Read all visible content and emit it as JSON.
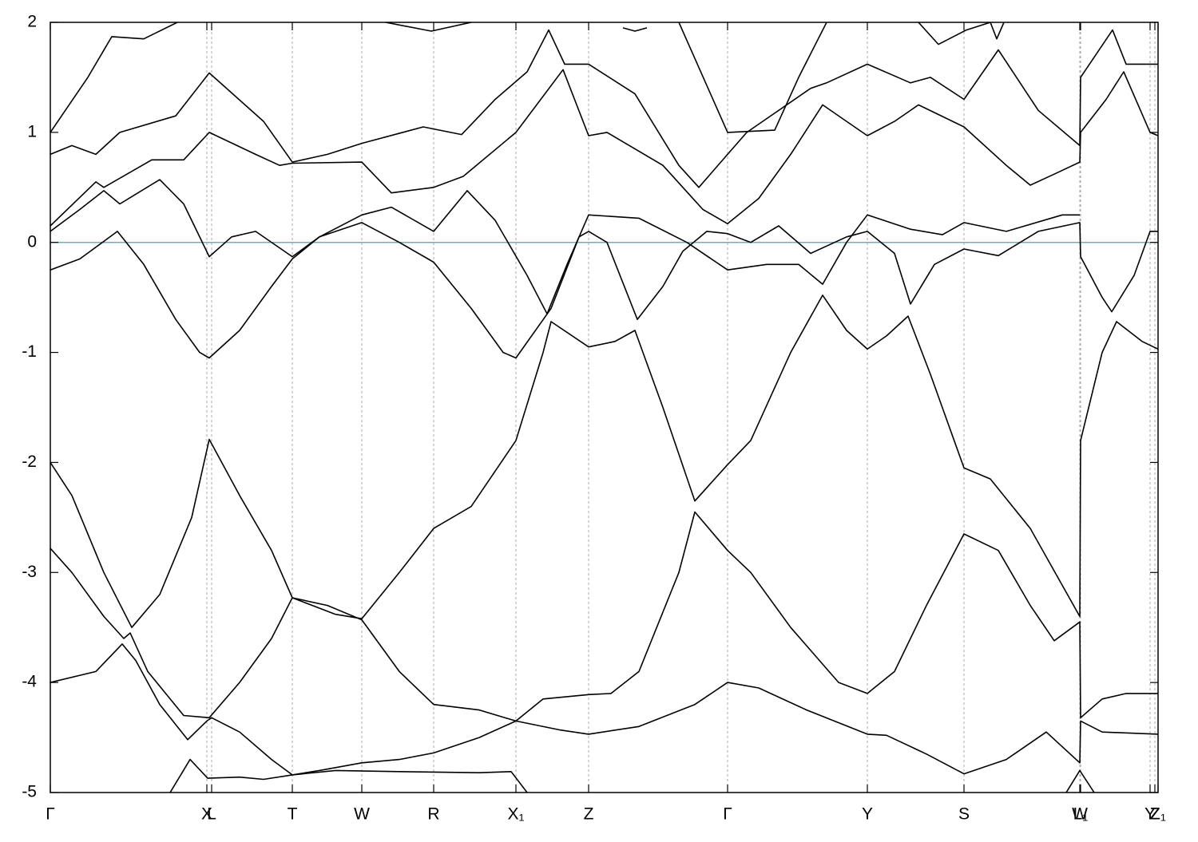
{
  "chart_data": {
    "type": "line",
    "xlim": [
      0,
      1387
    ],
    "ylim": [
      -5,
      2
    ],
    "xticks": [
      {
        "value": 0,
        "label": "Γ"
      },
      {
        "value": 196,
        "label": "X"
      },
      {
        "value": 202,
        "label": "L"
      },
      {
        "value": 303,
        "label": "T"
      },
      {
        "value": 390,
        "label": "W"
      },
      {
        "value": 480,
        "label": "R"
      },
      {
        "value": 583,
        "label": "X₁"
      },
      {
        "value": 674,
        "label": "Z"
      },
      {
        "value": 848,
        "label": "Γ"
      },
      {
        "value": 1023,
        "label": "Y"
      },
      {
        "value": 1144,
        "label": "S"
      },
      {
        "value": 1289,
        "label": "W"
      },
      {
        "value": 1290,
        "label": "L₁"
      },
      {
        "value": 1377,
        "label": "Y"
      },
      {
        "value": 1383,
        "label": "Z"
      },
      {
        "value": 1387,
        "label": "Z₁"
      }
    ],
    "yticks": [
      -5,
      -4,
      -3,
      -2,
      -1,
      0,
      1,
      2
    ],
    "grid": true,
    "reference_line": {
      "value": 0,
      "color": "#5fb4c8"
    },
    "series": [
      {
        "color": "#000000",
        "x": [
          150,
          175,
          197,
          237,
          267,
          303,
          357,
          437,
          537,
          577,
          597,
          1000,
          1272,
          1289,
          1307
        ],
        "values": [
          -5,
          -4.7,
          -4.87,
          -4.86,
          -4.88,
          -4.84,
          -4.8,
          -4.81,
          -4.82,
          -4.81,
          -5,
          null,
          -5,
          -4.8,
          -5
        ]
      },
      {
        "color": "#000000",
        "x": [
          0,
          57,
          90,
          107,
          137,
          172,
          196,
          202,
          237,
          277,
          303,
          337,
          390,
          437,
          480,
          537,
          583,
          617,
          674,
          702,
          737,
          787,
          807,
          848,
          877,
          927,
          987,
          1023,
          1057,
          1097,
          1144,
          1187,
          1227,
          1257,
          1289,
          1290,
          1317,
          1347,
          1387
        ],
        "values": [
          -4,
          -3.9,
          -3.65,
          -3.8,
          -4.2,
          -4.52,
          -4.35,
          -4.32,
          -4.45,
          -4.7,
          -4.84,
          -4.8,
          -4.73,
          -4.7,
          -4.64,
          -4.5,
          -4.35,
          -4.15,
          -4.11,
          -4.1,
          -3.9,
          -3.0,
          -2.45,
          -2.8,
          -3.0,
          -3.5,
          -4.0,
          -4.1,
          -3.9,
          -3.3,
          -2.65,
          -2.8,
          -3.3,
          -3.62,
          -3.45,
          -4.32,
          -4.15,
          -4.1,
          -4.1
        ]
      },
      {
        "color": "#000000",
        "x": [
          0,
          27,
          67,
          92,
          100,
          122,
          167,
          199,
          237,
          277,
          303,
          347,
          390,
          437,
          480,
          537,
          583,
          637,
          674,
          737,
          807,
          848,
          887,
          947,
          1023,
          1047,
          1097,
          1144,
          1197,
          1247,
          1289,
          1290,
          1317,
          1387
        ],
        "values": [
          -2.78,
          -3.0,
          -3.4,
          -3.6,
          -3.55,
          -3.9,
          -4.3,
          -4.32,
          -4.0,
          -3.6,
          -3.23,
          -3.3,
          -3.43,
          -3.9,
          -4.2,
          -4.25,
          -4.35,
          -4.43,
          -4.47,
          -4.4,
          -4.2,
          -4.0,
          -4.05,
          -4.25,
          -4.47,
          -4.48,
          -4.65,
          -4.83,
          -4.7,
          -4.45,
          -4.73,
          -4.35,
          -4.45,
          -4.47
        ]
      },
      {
        "color": "#000000",
        "x": [
          0,
          27,
          67,
          102,
          137,
          177,
          199,
          237,
          277,
          303,
          357,
          390,
          437,
          480,
          527,
          583,
          617,
          627,
          674,
          707,
          732,
          767,
          807,
          848,
          877,
          927,
          967,
          997,
          1023,
          1047,
          1074,
          1102,
          1144,
          1177,
          1227,
          1289,
          1290,
          1317,
          1335,
          1367,
          1387
        ],
        "values": [
          -2.0,
          -2.3,
          -3.0,
          -3.5,
          -3.2,
          -2.5,
          -1.79,
          -2.3,
          -2.8,
          -3.23,
          -3.38,
          -3.42,
          -3.0,
          -2.6,
          -2.4,
          -1.8,
          -1.0,
          -0.72,
          -0.95,
          -0.9,
          -0.8,
          -1.5,
          -2.35,
          -2.02,
          -1.8,
          -1.0,
          -0.48,
          -0.8,
          -0.97,
          -0.85,
          -0.67,
          -1.2,
          -2.05,
          -2.15,
          -2.6,
          -3.4,
          -1.8,
          -1.0,
          -0.72,
          -0.9,
          -0.97
        ]
      },
      {
        "color": "#000000",
        "x": [
          0,
          37,
          84,
          117,
          157,
          187,
          199,
          237,
          277,
          303,
          337,
          390,
          437,
          480,
          527,
          567,
          583,
          627,
          662,
          674,
          697,
          735,
          767,
          792,
          822,
          848,
          877,
          912,
          952,
          997,
          1023,
          1057,
          1077,
          1107,
          1144,
          1187,
          1237,
          1289,
          1290,
          1317,
          1329,
          1357,
          1377,
          1387
        ],
        "values": [
          -0.25,
          -0.15,
          0.1,
          -0.2,
          -0.7,
          -1.0,
          -1.05,
          -0.8,
          -0.4,
          -0.15,
          0.05,
          0.18,
          0.0,
          -0.18,
          -0.6,
          -1.0,
          -1.05,
          -0.6,
          0.05,
          0.1,
          0.0,
          -0.7,
          -0.4,
          -0.08,
          0.1,
          0.08,
          0.0,
          0.15,
          -0.1,
          0.05,
          0.1,
          -0.1,
          -0.56,
          -0.2,
          -0.06,
          -0.12,
          0.1,
          0.18,
          -0.13,
          -0.5,
          -0.63,
          -0.3,
          0.1,
          0.1
        ]
      },
      {
        "color": "#000000",
        "x": [
          0,
          37,
          67,
          87,
          137,
          167,
          199,
          227,
          257,
          303,
          337,
          390,
          427,
          480,
          522,
          557,
          597,
          622,
          647,
          674,
          737,
          797,
          848,
          897,
          937,
          967,
          997,
          1023,
          1077,
          1117,
          1144,
          1197,
          1267,
          1289
        ],
        "values": [
          0.1,
          0.3,
          0.47,
          0.35,
          0.57,
          0.35,
          -0.13,
          0.05,
          0.1,
          -0.13,
          0.05,
          0.25,
          0.32,
          0.1,
          0.47,
          0.2,
          -0.3,
          -0.65,
          -0.2,
          0.25,
          0.22,
          0.0,
          -0.25,
          -0.2,
          -0.2,
          -0.38,
          0.0,
          0.25,
          0.12,
          0.07,
          0.18,
          0.1,
          0.25,
          0.25
        ]
      },
      {
        "color": "#000000",
        "x": [
          0,
          57,
          67,
          127,
          167,
          199,
          257,
          287,
          303,
          390,
          427,
          480,
          517,
          583,
          642,
          674,
          697,
          767,
          817,
          848,
          887,
          927,
          967,
          997,
          1023,
          1057,
          1087,
          1144,
          1197,
          1227,
          1257,
          1289,
          1290,
          1322,
          1344,
          1377,
          1387
        ],
        "values": [
          0.15,
          0.55,
          0.5,
          0.75,
          0.75,
          1.0,
          0.8,
          0.7,
          0.72,
          0.73,
          0.45,
          0.5,
          0.6,
          1.0,
          1.57,
          0.97,
          1.0,
          0.7,
          0.3,
          0.17,
          0.4,
          0.8,
          1.25,
          1.1,
          0.97,
          1.1,
          1.25,
          1.05,
          0.7,
          0.52,
          0.62,
          0.73,
          1.0,
          1.3,
          1.55,
          1.0,
          0.97
        ]
      },
      {
        "color": "#000000",
        "x": [
          0,
          27,
          57,
          87,
          157,
          199,
          267,
          303,
          347,
          390,
          467,
          515,
          557,
          597,
          624,
          644,
          674,
          732,
          787,
          812,
          848,
          872,
          952,
          972,
          1023,
          1077,
          1102,
          1144,
          1187,
          1237,
          1289,
          1290,
          1330,
          1347,
          1387
        ],
        "values": [
          0.8,
          0.88,
          0.8,
          1.0,
          1.15,
          1.54,
          1.1,
          0.73,
          0.8,
          0.9,
          1.05,
          0.98,
          1.3,
          1.55,
          1.93,
          1.62,
          1.62,
          1.35,
          0.7,
          0.5,
          0.8,
          1.0,
          1.4,
          1.45,
          1.62,
          1.45,
          1.5,
          1.3,
          1.75,
          1.2,
          0.88,
          1.5,
          1.93,
          1.62,
          1.62
        ]
      },
      {
        "color": "#000000",
        "x": [
          0,
          47,
          77,
          117,
          159,
          200,
          420,
          477,
          527,
          600,
          717,
          732,
          747,
          760,
          787,
          848,
          907,
          937,
          972,
          1000,
          1087,
          1112,
          1147,
          1177,
          1185,
          1194
        ],
        "values": [
          1.0,
          1.5,
          1.87,
          1.85,
          2.0,
          null,
          2.0,
          1.92,
          2.0,
          null,
          1.95,
          1.92,
          1.95,
          null,
          2.0,
          1.0,
          1.02,
          1.5,
          2.0,
          null,
          2.0,
          1.8,
          1.93,
          2.0,
          1.85,
          2.0
        ]
      }
    ]
  }
}
